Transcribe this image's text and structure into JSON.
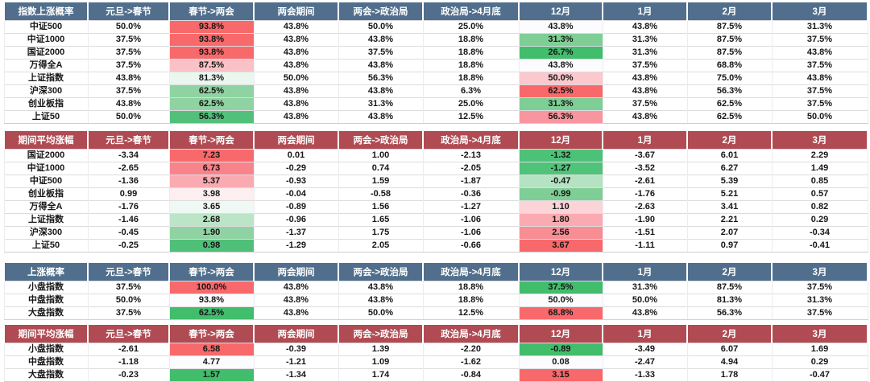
{
  "styles": {
    "page_background": "#FFFFFF",
    "blue_header_bg": "#516F8C",
    "red_header_bg": "#B04B53",
    "header_text_color": "#FFFFFF",
    "body_text_color": "#161616",
    "grid_line_color": "#DCDCDF",
    "scale_high_red": "#F8696B",
    "scale_mid_white": "#FCFCFF",
    "scale_low_green": "#41BD6C"
  },
  "chart_data": [
    {
      "type": "table",
      "title": "指数上涨概率",
      "header_bg": "#516F8C",
      "columns": [
        "元旦->春节",
        "春节->两会",
        "两会期间",
        "两会->政治局",
        "政治局->4月底",
        "12月",
        "1月",
        "2月",
        "3月"
      ],
      "rows": [
        {
          "label": "中证500",
          "values": [
            "50.0%",
            "93.8%",
            "43.8%",
            "50.0%",
            "25.0%",
            "43.8%",
            "43.8%",
            "87.5%",
            "31.3%"
          ],
          "cell_colors": [
            null,
            "#F8696B",
            null,
            null,
            null,
            "#FCFCFF",
            null,
            null,
            null
          ]
        },
        {
          "label": "中证1000",
          "values": [
            "37.5%",
            "93.8%",
            "43.8%",
            "43.8%",
            "18.8%",
            "31.3%",
            "31.3%",
            "87.5%",
            "37.5%"
          ],
          "cell_colors": [
            null,
            "#F8696B",
            null,
            null,
            null,
            "#7FCE95",
            null,
            null,
            null
          ]
        },
        {
          "label": "国证2000",
          "values": [
            "37.5%",
            "93.8%",
            "43.8%",
            "37.5%",
            "18.8%",
            "26.7%",
            "31.3%",
            "87.5%",
            "43.8%"
          ],
          "cell_colors": [
            null,
            "#F8696B",
            null,
            null,
            null,
            "#41BD6C",
            null,
            null,
            null
          ]
        },
        {
          "label": "万得全A",
          "values": [
            "37.5%",
            "87.5%",
            "43.8%",
            "43.8%",
            "18.8%",
            "43.8%",
            "37.5%",
            "68.8%",
            "37.5%"
          ],
          "cell_colors": [
            null,
            "#FAC1C6",
            null,
            null,
            null,
            "#FCFCFF",
            null,
            null,
            null
          ]
        },
        {
          "label": "上证指数",
          "values": [
            "43.8%",
            "81.3%",
            "50.0%",
            "56.3%",
            "18.8%",
            "50.0%",
            "43.8%",
            "75.0%",
            "43.8%"
          ],
          "cell_colors": [
            null,
            "#EBF6EF",
            null,
            null,
            null,
            "#FAC8CD",
            null,
            null,
            null
          ]
        },
        {
          "label": "沪深300",
          "values": [
            "37.5%",
            "62.5%",
            "43.8%",
            "43.8%",
            "6.3%",
            "62.5%",
            "43.8%",
            "56.3%",
            "37.5%"
          ],
          "cell_colors": [
            null,
            "#8FD3A2",
            null,
            null,
            null,
            "#F8696B",
            null,
            null,
            null
          ]
        },
        {
          "label": "创业板指",
          "values": [
            "43.8%",
            "62.5%",
            "43.8%",
            "31.3%",
            "25.0%",
            "31.3%",
            "37.5%",
            "62.5%",
            "37.5%"
          ],
          "cell_colors": [
            null,
            "#8FD3A2",
            null,
            null,
            null,
            "#7FCE95",
            null,
            null,
            null
          ]
        },
        {
          "label": "上证50",
          "values": [
            "50.0%",
            "56.3%",
            "43.8%",
            "43.8%",
            "12.5%",
            "56.3%",
            "43.8%",
            "62.5%",
            "50.0%"
          ],
          "cell_colors": [
            null,
            "#52C07B",
            null,
            null,
            null,
            "#F9959E",
            null,
            null,
            null
          ]
        }
      ]
    },
    {
      "type": "table",
      "title": "期间平均涨幅",
      "header_bg": "#B04B53",
      "columns": [
        "元旦->春节",
        "春节->两会",
        "两会期间",
        "两会->政治局",
        "政治局->4月底",
        "12月",
        "1月",
        "2月",
        "3月"
      ],
      "rows": [
        {
          "label": "国证2000",
          "values": [
            "-3.34",
            "7.23",
            "0.01",
            "1.00",
            "-2.13",
            "-1.32",
            "-3.67",
            "6.01",
            "2.29"
          ],
          "cell_colors": [
            null,
            "#F8696B",
            null,
            null,
            null,
            "#4CC278",
            null,
            null,
            null
          ]
        },
        {
          "label": "中证1000",
          "values": [
            "-2.65",
            "6.73",
            "-0.29",
            "0.74",
            "-2.05",
            "-1.27",
            "-3.52",
            "6.27",
            "1.49"
          ],
          "cell_colors": [
            null,
            "#F9838A",
            null,
            null,
            null,
            "#50C37A",
            null,
            null,
            null
          ]
        },
        {
          "label": "中证500",
          "values": [
            "-1.36",
            "5.37",
            "-0.93",
            "1.59",
            "-1.87",
            "-0.47",
            "-2.61",
            "5.39",
            "0.85"
          ],
          "cell_colors": [
            null,
            "#FAABB1",
            null,
            null,
            null,
            "#B5E2C2",
            null,
            null,
            null
          ]
        },
        {
          "label": "创业板指",
          "values": [
            "0.99",
            "3.98",
            "-0.04",
            "-0.58",
            "-0.36",
            "-0.99",
            "-1.76",
            "5.21",
            "0.57"
          ],
          "cell_colors": [
            null,
            "#FDEEF0",
            null,
            null,
            null,
            "#7FCE95",
            null,
            null,
            null
          ]
        },
        {
          "label": "万得全A",
          "values": [
            "-1.76",
            "3.65",
            "-0.89",
            "1.56",
            "-1.27",
            "1.10",
            "-2.63",
            "3.41",
            "0.82"
          ],
          "cell_colors": [
            null,
            "#F0F8F3",
            null,
            null,
            null,
            "#FBD4D8",
            null,
            null,
            null
          ]
        },
        {
          "label": "上证指数",
          "values": [
            "-1.46",
            "2.68",
            "-0.96",
            "1.65",
            "-1.06",
            "1.80",
            "-1.90",
            "2.21",
            "0.29"
          ],
          "cell_colors": [
            null,
            "#BCE5C8",
            null,
            null,
            null,
            "#FAABB1",
            null,
            null,
            null
          ]
        },
        {
          "label": "沪深300",
          "values": [
            "-0.45",
            "1.90",
            "-1.37",
            "1.75",
            "-1.06",
            "2.56",
            "-1.51",
            "2.07",
            "-0.34"
          ],
          "cell_colors": [
            null,
            "#8FD3A2",
            null,
            null,
            null,
            "#F98D94",
            null,
            null,
            null
          ]
        },
        {
          "label": "上证50",
          "values": [
            "-0.25",
            "0.98",
            "-1.29",
            "2.05",
            "-0.66",
            "3.67",
            "-1.11",
            "0.97",
            "-0.41"
          ],
          "cell_colors": [
            null,
            "#50BF78",
            null,
            null,
            null,
            "#F8696B",
            null,
            null,
            null
          ]
        }
      ]
    },
    {
      "type": "table",
      "title": "上涨概率",
      "header_bg": "#516F8C",
      "columns": [
        "元旦->春节",
        "春节->两会",
        "两会期间",
        "两会->政治局",
        "政治局->4月底",
        "12月",
        "1月",
        "2月",
        "3月"
      ],
      "rows": [
        {
          "label": "小盘指数",
          "values": [
            "37.5%",
            "100.0%",
            "43.8%",
            "43.8%",
            "18.8%",
            "37.5%",
            "31.3%",
            "87.5%",
            "37.5%"
          ],
          "cell_colors": [
            null,
            "#F8696B",
            null,
            null,
            null,
            "#41BD6C",
            null,
            null,
            null
          ]
        },
        {
          "label": "中盘指数",
          "values": [
            "50.0%",
            "93.8%",
            "43.8%",
            "43.8%",
            "18.8%",
            "50.0%",
            "50.0%",
            "81.3%",
            "31.3%"
          ],
          "cell_colors": [
            null,
            "#FCFCFF",
            null,
            null,
            null,
            "#FCFCFF",
            null,
            null,
            null
          ]
        },
        {
          "label": "大盘指数",
          "values": [
            "37.5%",
            "62.5%",
            "43.8%",
            "50.0%",
            "12.5%",
            "68.8%",
            "43.8%",
            "56.3%",
            "37.5%"
          ],
          "cell_colors": [
            null,
            "#41BD6C",
            null,
            null,
            null,
            "#F8696B",
            null,
            null,
            null
          ]
        }
      ]
    },
    {
      "type": "table",
      "title": "期间平均涨幅",
      "header_bg": "#B04B53",
      "columns": [
        "元旦->春节",
        "春节->两会",
        "两会期间",
        "两会->政治局",
        "政治局->4月底",
        "12月",
        "1月",
        "2月",
        "3月"
      ],
      "rows": [
        {
          "label": "小盘指数",
          "values": [
            "-2.61",
            "6.58",
            "-0.39",
            "1.39",
            "-2.20",
            "-0.89",
            "-3.49",
            "6.07",
            "1.69"
          ],
          "cell_colors": [
            null,
            "#F8696B",
            null,
            null,
            null,
            "#41BD6C",
            null,
            null,
            null
          ]
        },
        {
          "label": "中盘指数",
          "values": [
            "-1.18",
            "4.77",
            "-1.21",
            "1.09",
            "-1.62",
            "0.08",
            "-2.47",
            "4.94",
            "0.29"
          ],
          "cell_colors": [
            null,
            "#FCFCFF",
            null,
            null,
            null,
            "#FCFCFF",
            null,
            null,
            null
          ]
        },
        {
          "label": "大盘指数",
          "values": [
            "-0.23",
            "1.57",
            "-1.34",
            "1.74",
            "-0.84",
            "3.15",
            "-1.33",
            "1.78",
            "-0.47"
          ],
          "cell_colors": [
            null,
            "#41BD6C",
            null,
            null,
            null,
            "#F8696B",
            null,
            null,
            null
          ]
        }
      ]
    }
  ]
}
